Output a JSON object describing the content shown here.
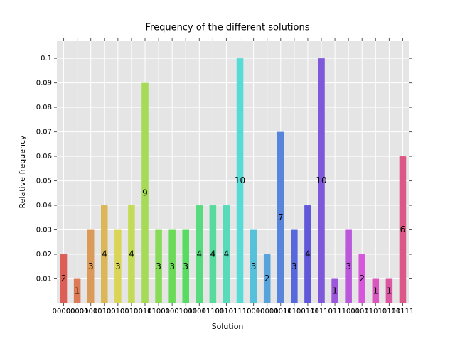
{
  "chart_data": {
    "type": "bar",
    "title": "Frequency of the different solutions",
    "x_label": "Solution",
    "y_label": "Relative frequency",
    "categories": [
      "00000",
      "00001",
      "00011",
      "00100",
      "00101",
      "00110",
      "00111",
      "01000",
      "01001",
      "01010",
      "01011",
      "01100",
      "01101",
      "01110",
      "10000",
      "10001",
      "10011",
      "10100",
      "10101",
      "10110",
      "10111",
      "11000",
      "11001",
      "11010",
      "11100",
      "11111"
    ],
    "values": [
      0.02,
      0.01,
      0.03,
      0.04,
      0.03,
      0.04,
      0.09,
      0.03,
      0.03,
      0.03,
      0.04,
      0.04,
      0.04,
      0.1,
      0.03,
      0.02,
      0.07,
      0.03,
      0.04,
      0.1,
      0.01,
      0.03,
      0.02,
      0.01,
      0.01,
      0.06
    ],
    "value_labels": [
      "2",
      "1",
      "3",
      "4",
      "3",
      "4",
      "9",
      "3",
      "3",
      "3",
      "4",
      "4",
      "4",
      "10",
      "3",
      "2",
      "7",
      "3",
      "4",
      "10",
      "1",
      "3",
      "2",
      "1",
      "1",
      "6"
    ],
    "colors": [
      "#db5f57",
      "#db7c57",
      "#db9a57",
      "#dbb757",
      "#dbd557",
      "#c3db57",
      "#a5db57",
      "#88db57",
      "#6adb57",
      "#57db61",
      "#57db7f",
      "#57db9c",
      "#57dbba",
      "#57dbd7",
      "#57c0db",
      "#57a3db",
      "#5785db",
      "#5768db",
      "#6157db",
      "#7f57db",
      "#9c57db",
      "#ba57db",
      "#d757db",
      "#db57c0",
      "#db57a3",
      "#db5785"
    ],
    "ylim": [
      0,
      0.107
    ],
    "yticks": [
      0.01,
      0.02,
      0.03,
      0.04,
      0.05,
      0.06,
      0.07,
      0.08,
      0.09,
      0.1
    ],
    "grid": true
  }
}
